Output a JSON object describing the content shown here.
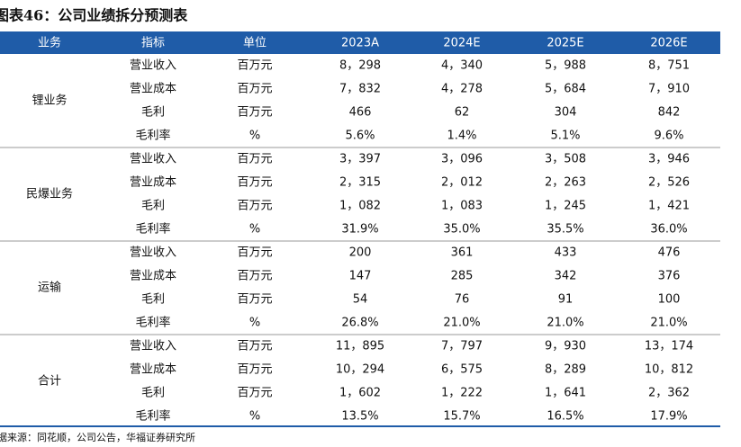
{
  "title": "图表46：公司业绩拆分预测表",
  "table": {
    "header": [
      "业务",
      "指标",
      "单位",
      "2023A",
      "2024E",
      "2025E",
      "2026E"
    ],
    "groups": [
      {
        "name": "锂业务",
        "rows": [
          [
            "营业收入",
            "百万元",
            "8，298",
            "4，340",
            "5，988",
            "8，751"
          ],
          [
            "营业成本",
            "百万元",
            "7，832",
            "4，278",
            "5，684",
            "7，910"
          ],
          [
            "毛利",
            "百万元",
            "466",
            "62",
            "304",
            "842"
          ],
          [
            "毛利率",
            "%",
            "5.6%",
            "1.4%",
            "5.1%",
            "9.6%"
          ]
        ]
      },
      {
        "name": "民爆业务",
        "rows": [
          [
            "营业收入",
            "百万元",
            "3，397",
            "3，096",
            "3，508",
            "3，946"
          ],
          [
            "营业成本",
            "百万元",
            "2，315",
            "2，012",
            "2，263",
            "2，526"
          ],
          [
            "毛利",
            "百万元",
            "1，082",
            "1，083",
            "1，245",
            "1，421"
          ],
          [
            "毛利率",
            "%",
            "31.9%",
            "35.0%",
            "35.5%",
            "36.0%"
          ]
        ]
      },
      {
        "name": "运输",
        "rows": [
          [
            "营业收入",
            "百万元",
            "200",
            "361",
            "433",
            "476"
          ],
          [
            "营业成本",
            "百万元",
            "147",
            "285",
            "342",
            "376"
          ],
          [
            "毛利",
            "百万元",
            "54",
            "76",
            "91",
            "100"
          ],
          [
            "毛利率",
            "%",
            "26.8%",
            "21.0%",
            "21.0%",
            "21.0%"
          ]
        ]
      },
      {
        "name": "合计",
        "rows": [
          [
            "营业收入",
            "百万元",
            "11，895",
            "7，797",
            "9，930",
            "13，174"
          ],
          [
            "营业成本",
            "百万元",
            "10，294",
            "6，575",
            "8，289",
            "10，812"
          ],
          [
            "毛利",
            "百万元",
            "1，602",
            "1，222",
            "1，641",
            "2，362"
          ],
          [
            "毛利率",
            "%",
            "13.5%",
            "15.7%",
            "16.5%",
            "17.9%"
          ]
        ]
      }
    ]
  },
  "source": "数据来源：同花顺，公司公告，华福证券研究所"
}
